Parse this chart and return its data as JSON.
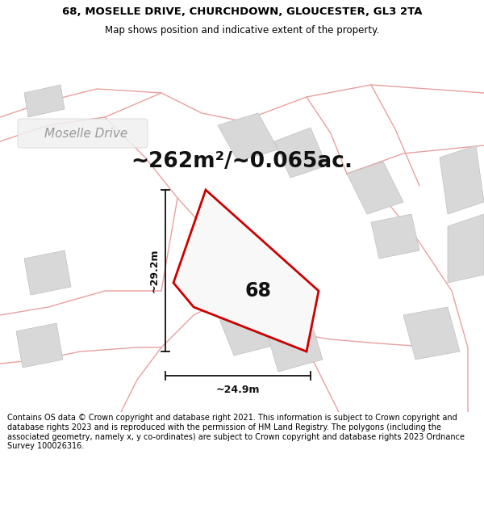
{
  "title": "68, MOSELLE DRIVE, CHURCHDOWN, GLOUCESTER, GL3 2TA",
  "subtitle": "Map shows position and indicative extent of the property.",
  "area_text": "~262m²/~0.065ac.",
  "label_68": "68",
  "dim_height": "~29.2m",
  "dim_width": "~24.9m",
  "street_label": "Moselle Drive",
  "footer": "Contains OS data © Crown copyright and database right 2021. This information is subject to Crown copyright and database rights 2023 and is reproduced with the permission of HM Land Registry. The polygons (including the associated geometry, namely x, y co-ordinates) are subject to Crown copyright and database rights 2023 Ordnance Survey 100026316.",
  "bg_color": "#ffffff",
  "map_bg": "#f7f7f7",
  "red_plot_color": "#cc0000",
  "dim_color": "#111111",
  "road_color": "#e8a0a0",
  "road_color2": "#c8b8b8",
  "building_color": "#d8d8d8",
  "building_edge": "#c0c0c0",
  "title_fontsize": 9.5,
  "subtitle_fontsize": 8.5,
  "area_fontsize": 19,
  "label_fontsize": 17,
  "dim_fontsize": 9,
  "street_fontsize": 11,
  "footer_fontsize": 7.0
}
